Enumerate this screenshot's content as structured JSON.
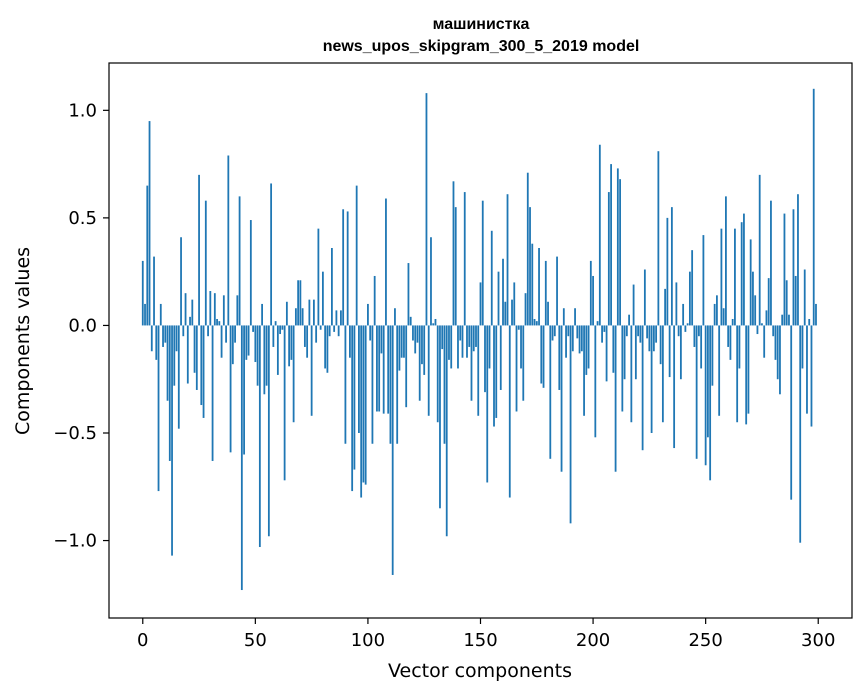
{
  "chart_data": {
    "type": "bar",
    "title_line1": "машинистка",
    "title_line2": "news_upos_skipgram_300_5_2019 model",
    "xlabel": "Vector components",
    "ylabel": "Components values",
    "xlim": [
      -15,
      315
    ],
    "ylim": [
      -1.36,
      1.22
    ],
    "x_ticks": [
      0,
      50,
      100,
      150,
      200,
      250,
      300
    ],
    "x_tick_labels": [
      "0",
      "50",
      "100",
      "150",
      "200",
      "250",
      "300"
    ],
    "y_ticks": [
      -1.0,
      -0.5,
      0.0,
      0.5,
      1.0
    ],
    "y_tick_labels": [
      "−1.0",
      "−0.5",
      "0.0",
      "0.5",
      "1.0"
    ],
    "color": "#1f77b4",
    "values": [
      0.3,
      0.1,
      0.65,
      0.95,
      -0.12,
      0.32,
      -0.16,
      -0.77,
      0.1,
      -0.1,
      -0.08,
      -0.35,
      -0.63,
      -1.07,
      -0.28,
      -0.12,
      -0.48,
      0.41,
      -0.05,
      0.15,
      -0.27,
      0.04,
      0.12,
      -0.22,
      -0.3,
      0.7,
      -0.37,
      -0.43,
      0.58,
      -0.05,
      0.16,
      -0.63,
      0.15,
      0.03,
      0.02,
      -0.15,
      0.14,
      -0.08,
      0.79,
      -0.59,
      -0.18,
      -0.08,
      0.14,
      0.6,
      -1.23,
      -0.6,
      -0.16,
      -0.14,
      0.49,
      -0.03,
      -0.17,
      -0.28,
      -1.03,
      0.1,
      -0.32,
      -0.28,
      -0.98,
      0.66,
      -0.1,
      0.02,
      -0.23,
      -0.04,
      -0.02,
      -0.72,
      0.11,
      -0.19,
      -0.16,
      -0.45,
      0.08,
      0.21,
      0.21,
      0.08,
      -0.1,
      -0.15,
      0.12,
      -0.42,
      0.12,
      -0.08,
      0.45,
      -0.02,
      0.25,
      -0.2,
      -0.22,
      -0.05,
      0.36,
      -0.03,
      0.07,
      -0.05,
      0.07,
      0.54,
      -0.55,
      0.53,
      -0.15,
      -0.77,
      -0.67,
      0.65,
      -0.5,
      -0.8,
      -0.73,
      -0.74,
      0.1,
      -0.07,
      -0.55,
      0.23,
      -0.4,
      -0.4,
      -0.13,
      -0.41,
      0.59,
      -0.41,
      -0.55,
      -1.16,
      0.08,
      -0.55,
      -0.21,
      -0.15,
      -0.15,
      -0.38,
      0.29,
      0.04,
      -0.07,
      -0.13,
      -0.08,
      -0.35,
      -0.18,
      -0.23,
      1.08,
      -0.42,
      0.41,
      0.01,
      0.03,
      -0.45,
      -0.85,
      -0.11,
      -0.55,
      -0.98,
      -0.16,
      -0.2,
      0.67,
      0.55,
      -0.2,
      -0.07,
      -0.15,
      0.62,
      -0.15,
      -0.1,
      -0.35,
      -0.12,
      -0.1,
      -0.42,
      0.2,
      0.58,
      -0.31,
      -0.73,
      -0.2,
      0.44,
      -0.47,
      -0.43,
      0.25,
      -0.3,
      0.31,
      0.11,
      0.61,
      -0.8,
      0.12,
      0.2,
      -0.4,
      -0.02,
      -0.2,
      -0.35,
      0.15,
      0.71,
      0.55,
      0.38,
      0.03,
      0.02,
      0.36,
      -0.27,
      -0.29,
      0.3,
      0.11,
      -0.62,
      -0.07,
      -0.05,
      0.32,
      -0.3,
      -0.68,
      0.08,
      -0.15,
      -0.05,
      -0.92,
      -0.12,
      0.08,
      -0.06,
      -0.13,
      -0.12,
      -0.42,
      -0.23,
      -0.2,
      0.3,
      0.23,
      -0.52,
      0.02,
      0.84,
      -0.08,
      -0.03,
      -0.26,
      0.62,
      0.75,
      -0.22,
      -0.68,
      0.73,
      0.68,
      -0.4,
      -0.25,
      -0.05,
      0.05,
      -0.45,
      0.19,
      -0.25,
      -0.05,
      -0.08,
      -0.58,
      0.26,
      -0.06,
      -0.12,
      -0.5,
      -0.12,
      -0.08,
      0.81,
      -0.18,
      -0.45,
      0.17,
      0.5,
      -0.24,
      0.55,
      -0.57,
      0.2,
      -0.05,
      -0.25,
      0.1,
      -0.03,
      0.01,
      0.25,
      0.35,
      -0.1,
      -0.62,
      -0.05,
      -0.2,
      0.42,
      -0.65,
      -0.52,
      -0.72,
      -0.28,
      0.1,
      0.14,
      -0.42,
      0.45,
      0.08,
      0.6,
      -0.1,
      -0.16,
      0.03,
      0.45,
      -0.45,
      -0.2,
      0.48,
      0.52,
      -0.46,
      -0.41,
      0.4,
      0.25,
      0.14,
      -0.04,
      0.7,
      0.01,
      -0.15,
      0.07,
      0.22,
      0.58,
      -0.05,
      -0.16,
      -0.25,
      -0.32,
      0.05,
      0.52,
      0.21,
      0.05,
      -0.81,
      0.54,
      0.23,
      0.61,
      -1.01,
      -0.2,
      0.26,
      -0.41,
      0.03,
      -0.47,
      1.1,
      0.1
    ]
  }
}
